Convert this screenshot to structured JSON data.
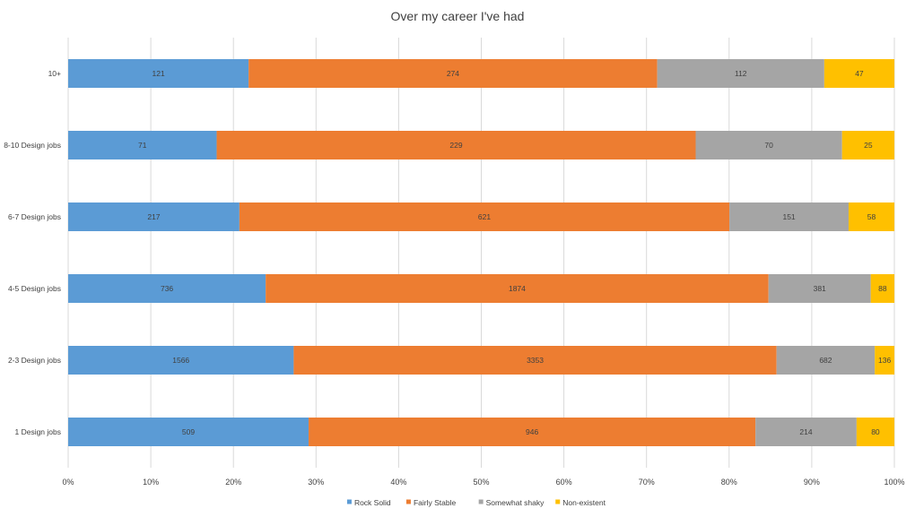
{
  "chart_data": {
    "type": "bar",
    "orientation": "horizontal",
    "stacking": "percent",
    "title": "Over my career I've had",
    "categories": [
      "10+",
      "8-10 Design jobs",
      "6-7 Design jobs",
      "4-5 Design jobs",
      "2-3 Design jobs",
      "1 Design jobs"
    ],
    "series": [
      {
        "name": "Rock Solid",
        "color": "#5b9bd5",
        "values": [
          121,
          71,
          217,
          736,
          1566,
          509
        ]
      },
      {
        "name": "Fairly Stable",
        "color": "#ed7d31",
        "values": [
          274,
          229,
          621,
          1874,
          3353,
          946
        ]
      },
      {
        "name": "Somewhat shaky",
        "color": "#a5a5a5",
        "values": [
          112,
          70,
          151,
          381,
          682,
          214
        ]
      },
      {
        "name": "Non-existent",
        "color": "#ffc000",
        "values": [
          47,
          25,
          58,
          88,
          136,
          80
        ]
      }
    ],
    "x_ticks": [
      "0%",
      "10%",
      "20%",
      "30%",
      "40%",
      "50%",
      "60%",
      "70%",
      "80%",
      "90%",
      "100%"
    ],
    "xlim": [
      0,
      100
    ],
    "grid": true,
    "legend_position": "bottom"
  }
}
